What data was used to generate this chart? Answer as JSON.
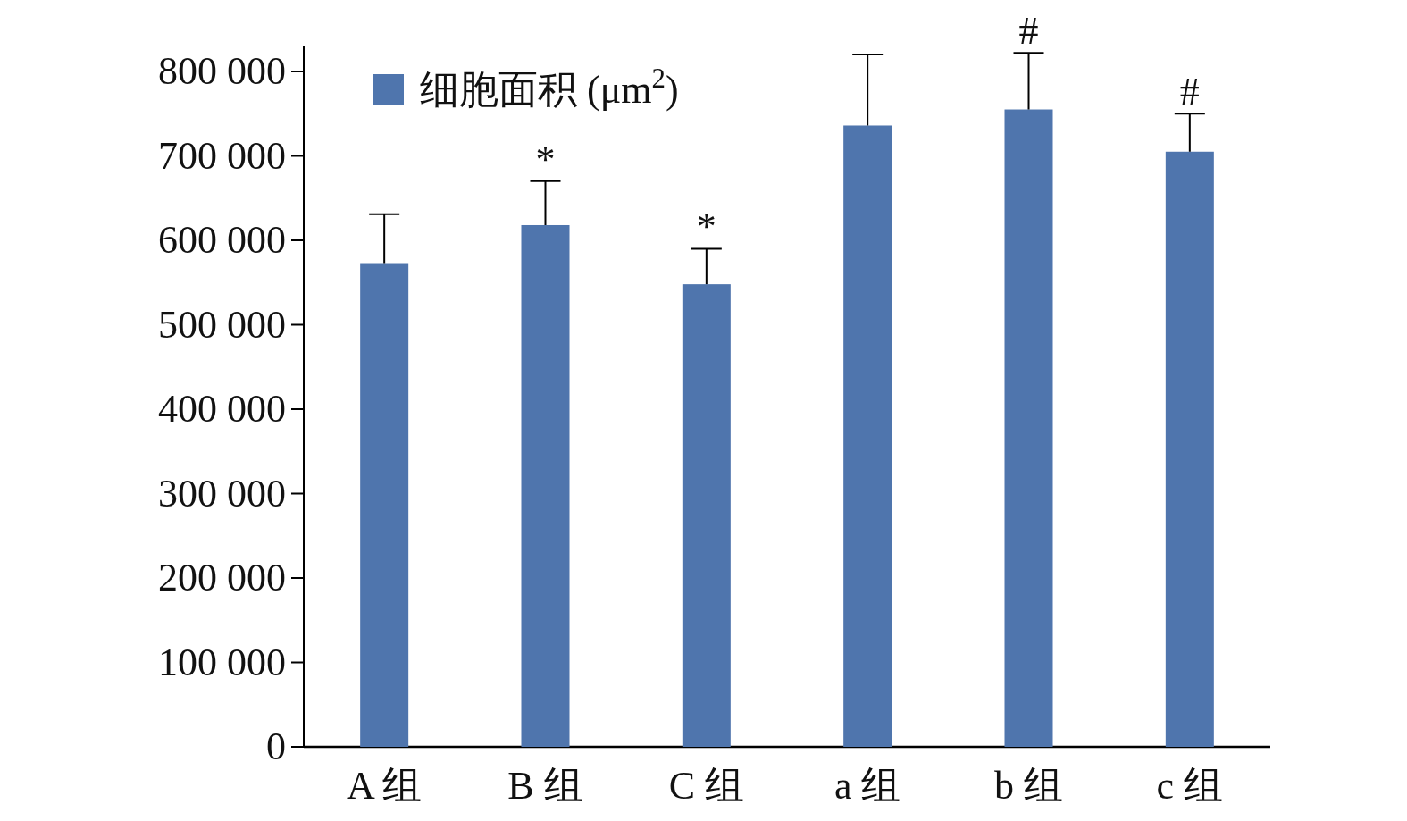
{
  "chart_data": {
    "type": "bar",
    "categories": [
      "A 组",
      "B 组",
      "C 组",
      "a 组",
      "b 组",
      "c 组"
    ],
    "series": [
      {
        "name": "细胞面积 (μm$^{2}$)",
        "color": "#4f75ad",
        "values": [
          573000,
          618000,
          548000,
          736000,
          755000,
          705000
        ],
        "errors": [
          [
            573000,
            631000
          ],
          [
            618000,
            670000
          ],
          [
            548000,
            590000
          ],
          [
            736000,
            820000
          ],
          [
            755000,
            822000
          ],
          [
            705000,
            750000
          ]
        ]
      }
    ],
    "ylim": [
      0,
      830000
    ],
    "yticks": [
      0,
      {
        "value": 100000,
        "label": "100 000"
      },
      {
        "value": 200000,
        "label": "200 000"
      },
      {
        "value": 300000,
        "label": "300 000"
      },
      {
        "value": 400000,
        "label": "400 000"
      },
      {
        "value": 500000,
        "label": "500 000"
      },
      {
        "value": 600000,
        "label": "600 000"
      },
      {
        "value": 700000,
        "label": "700 000"
      },
      {
        "value": 800000,
        "label": "800 000"
      }
    ],
    "grid": false,
    "legend": "top left",
    "annotations": [
      {
        "text": "*",
        "x": "B 组",
        "y": 670000
      },
      {
        "text": "*",
        "x": "C 组",
        "y": 590000
      },
      {
        "text": "#",
        "x": "b 组",
        "y": 822000
      },
      {
        "text": "#",
        "x": "c 组",
        "y": 750000
      }
    ]
  }
}
